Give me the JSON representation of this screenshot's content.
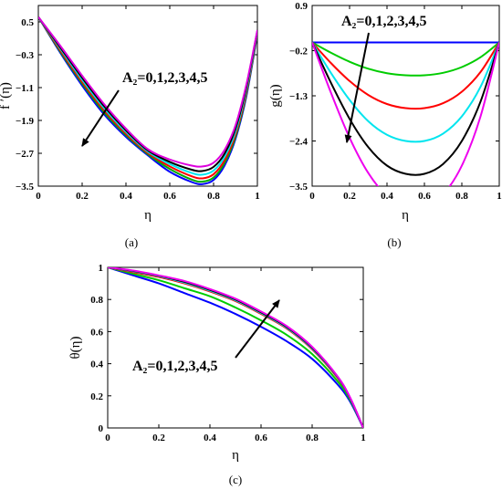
{
  "chart_data": [
    {
      "type": "line",
      "panel": "(a)",
      "caption": "(a)",
      "xlabel": "η",
      "ylabel": "f ′(η)",
      "xlim": [
        0,
        1
      ],
      "ylim": [
        -3.5,
        0.9
      ],
      "xticks": [
        0,
        0.2,
        0.4,
        0.6,
        0.8,
        1
      ],
      "xtick_labels": [
        "0",
        "0.2",
        "0.4",
        "0.6",
        "0.8",
        "1"
      ],
      "yticks": [
        0.5,
        -0.3,
        -1.1,
        -1.9,
        -2.7,
        -3.5
      ],
      "ytick_labels": [
        "0.5",
        "−0.3",
        "−1.1",
        "−1.9",
        "−2.7",
        "−3.5"
      ],
      "annotation": "A₂=0,1,2,3,4,5",
      "x": [
        0,
        0.1,
        0.2,
        0.3,
        0.4,
        0.5,
        0.6,
        0.7,
        0.75,
        0.8,
        0.85,
        0.9,
        0.95,
        1.0
      ],
      "series": [
        {
          "color": "#0000ff",
          "values": [
            0.62,
            -0.25,
            -1.05,
            -1.75,
            -2.3,
            -2.75,
            -3.15,
            -3.4,
            -3.45,
            -3.35,
            -3.0,
            -2.35,
            -1.3,
            0.2
          ]
        },
        {
          "color": "#00aa00",
          "values": [
            0.62,
            -0.22,
            -1.0,
            -1.7,
            -2.26,
            -2.72,
            -3.08,
            -3.34,
            -3.39,
            -3.29,
            -2.94,
            -2.3,
            -1.25,
            0.22
          ]
        },
        {
          "color": "#ff0000",
          "values": [
            0.62,
            -0.19,
            -0.96,
            -1.65,
            -2.22,
            -2.69,
            -3.02,
            -3.26,
            -3.31,
            -3.21,
            -2.87,
            -2.24,
            -1.2,
            0.24
          ]
        },
        {
          "color": "#00e5ee",
          "values": [
            0.62,
            -0.15,
            -0.91,
            -1.6,
            -2.18,
            -2.66,
            -2.96,
            -3.18,
            -3.22,
            -3.12,
            -2.79,
            -2.17,
            -1.14,
            0.26
          ]
        },
        {
          "color": "#000000",
          "values": [
            0.62,
            -0.12,
            -0.86,
            -1.55,
            -2.14,
            -2.63,
            -2.91,
            -3.1,
            -3.13,
            -3.03,
            -2.71,
            -2.1,
            -1.08,
            0.28
          ]
        },
        {
          "color": "#dd00dd",
          "values": [
            0.62,
            -0.08,
            -0.81,
            -1.5,
            -2.1,
            -2.6,
            -2.85,
            -3.0,
            -3.02,
            -2.93,
            -2.62,
            -2.02,
            -1.02,
            0.3
          ]
        }
      ]
    },
    {
      "type": "line",
      "panel": "(b)",
      "caption": "(b)",
      "xlabel": "η",
      "ylabel": "g(η)",
      "xlim": [
        0,
        1
      ],
      "ylim": [
        -3.5,
        0.9
      ],
      "xticks": [
        0,
        0.2,
        0.4,
        0.6,
        0.8,
        1
      ],
      "xtick_labels": [
        "0",
        "0.2",
        "0.4",
        "0.6",
        "0.8",
        "1"
      ],
      "yticks": [
        0.9,
        -0.2,
        -1.3,
        -2.4,
        -3.5
      ],
      "ytick_labels": [
        "0.9",
        "−0.2",
        "−1.3",
        "−2.4",
        "−3.5"
      ],
      "annotation": "A₂=0,1,2,3,4,5",
      "x": [
        0,
        0.1,
        0.2,
        0.3,
        0.4,
        0.5,
        0.6,
        0.7,
        0.8,
        0.9,
        1.0
      ],
      "series": [
        {
          "color": "#0000ff",
          "values": [
            0,
            0,
            0,
            0,
            0,
            0,
            0,
            0,
            0,
            0,
            0
          ]
        },
        {
          "color": "#00cc00",
          "values": [
            0,
            -0.25,
            -0.47,
            -0.64,
            -0.75,
            -0.8,
            -0.8,
            -0.74,
            -0.6,
            -0.36,
            0
          ]
        },
        {
          "color": "#ff0000",
          "values": [
            0,
            -0.5,
            -0.94,
            -1.28,
            -1.5,
            -1.6,
            -1.6,
            -1.48,
            -1.2,
            -0.72,
            0
          ]
        },
        {
          "color": "#00e5ee",
          "values": [
            0,
            -0.74,
            -1.4,
            -1.92,
            -2.25,
            -2.4,
            -2.4,
            -2.22,
            -1.8,
            -1.08,
            0
          ]
        },
        {
          "color": "#000000",
          "values": [
            0,
            -0.98,
            -1.86,
            -2.55,
            -3.0,
            -3.2,
            -3.2,
            -2.96,
            -2.4,
            -1.44,
            0
          ]
        },
        {
          "color": "#ee00ee",
          "values": [
            0,
            -1.22,
            -2.32,
            -3.18,
            -3.74,
            -4.0,
            -4.0,
            -3.7,
            -3.0,
            -1.8,
            0
          ]
        }
      ]
    },
    {
      "type": "line",
      "panel": "(c)",
      "caption": "(c)",
      "xlabel": "η",
      "ylabel": "θ(η)",
      "xlim": [
        0,
        1
      ],
      "ylim": [
        0,
        1
      ],
      "xticks": [
        0,
        0.2,
        0.4,
        0.6,
        0.8,
        1
      ],
      "xtick_labels": [
        "0",
        "0.2",
        "0.4",
        "0.6",
        "0.8",
        "1"
      ],
      "yticks": [
        1,
        0.8,
        0.6,
        0.4,
        0.2,
        0
      ],
      "ytick_labels": [
        "1",
        "0.8",
        "0.6",
        "0.4",
        "0.2",
        "0"
      ],
      "annotation": "A₂=0,1,2,3,4,5",
      "x": [
        0,
        0.1,
        0.2,
        0.3,
        0.4,
        0.5,
        0.6,
        0.7,
        0.8,
        0.9,
        0.95,
        1.0
      ],
      "series": [
        {
          "color": "#0000ff",
          "values": [
            1,
            0.95,
            0.9,
            0.84,
            0.78,
            0.71,
            0.63,
            0.54,
            0.43,
            0.27,
            0.16,
            0
          ]
        },
        {
          "color": "#00cc00",
          "values": [
            1,
            0.96,
            0.92,
            0.87,
            0.82,
            0.75,
            0.67,
            0.58,
            0.46,
            0.29,
            0.17,
            0
          ]
        },
        {
          "color": "#ff0000",
          "values": [
            1,
            0.97,
            0.94,
            0.9,
            0.85,
            0.79,
            0.71,
            0.62,
            0.49,
            0.31,
            0.18,
            0
          ]
        },
        {
          "color": "#00e5ee",
          "values": [
            1,
            0.975,
            0.945,
            0.905,
            0.855,
            0.795,
            0.715,
            0.625,
            0.495,
            0.315,
            0.18,
            0
          ]
        },
        {
          "color": "#000000",
          "values": [
            1,
            0.978,
            0.948,
            0.91,
            0.86,
            0.8,
            0.72,
            0.63,
            0.5,
            0.318,
            0.182,
            0
          ]
        },
        {
          "color": "#ee00ee",
          "values": [
            1,
            0.98,
            0.95,
            0.915,
            0.865,
            0.805,
            0.725,
            0.635,
            0.505,
            0.32,
            0.185,
            0
          ]
        }
      ]
    }
  ]
}
